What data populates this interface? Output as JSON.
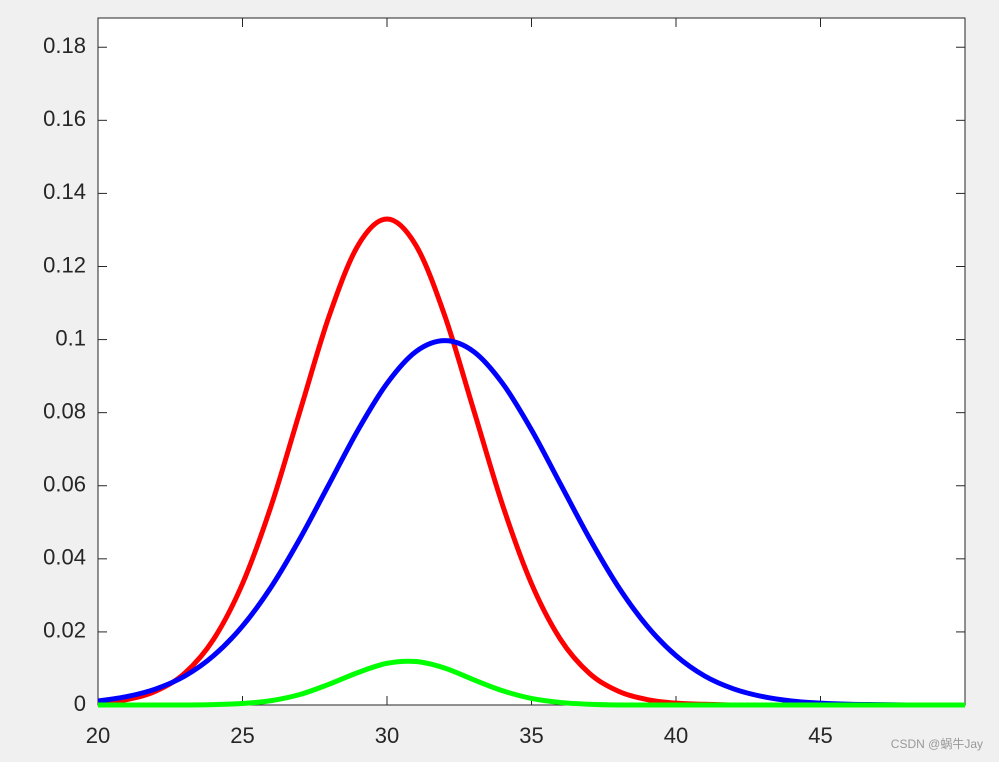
{
  "chart_data": {
    "type": "line",
    "x": [
      20,
      21,
      22,
      23,
      24,
      25,
      26,
      27,
      28,
      29,
      30,
      31,
      32,
      33,
      34,
      35,
      36,
      37,
      38,
      39,
      40,
      41,
      42,
      43,
      44,
      45,
      46,
      47,
      48,
      49,
      50
    ],
    "series": [
      {
        "color": "#ff0000",
        "values": [
          0.0005,
          0.0015,
          0.0038,
          0.0087,
          0.018,
          0.0332,
          0.0547,
          0.0807,
          0.1065,
          0.1258,
          0.133,
          0.1258,
          0.1065,
          0.0807,
          0.0547,
          0.0332,
          0.018,
          0.0087,
          0.0038,
          0.0015,
          0.0005,
          0.0002,
          0,
          0,
          0,
          0,
          0,
          0,
          0,
          0,
          0
        ]
      },
      {
        "color": "#0000ff",
        "values": [
          0.0011,
          0.0023,
          0.0044,
          0.0079,
          0.0135,
          0.0216,
          0.0324,
          0.0457,
          0.0605,
          0.0753,
          0.088,
          0.0967,
          0.0997,
          0.0967,
          0.088,
          0.0753,
          0.0605,
          0.0457,
          0.0324,
          0.0216,
          0.0135,
          0.0079,
          0.0044,
          0.0023,
          0.0011,
          0.0005,
          0.0002,
          0.0001,
          0,
          0,
          0
        ]
      },
      {
        "color": "#00ff00",
        "values": [
          0,
          0,
          0,
          0,
          0.0001,
          0.0004,
          0.0012,
          0.0029,
          0.0057,
          0.0089,
          0.0114,
          0.0119,
          0.0101,
          0.0069,
          0.0039,
          0.0018,
          0.0007,
          0.0002,
          0,
          0,
          0,
          0,
          0,
          0,
          0,
          0,
          0,
          0,
          0,
          0,
          0
        ]
      }
    ],
    "xlim": [
      20,
      50
    ],
    "xticks": [
      20,
      25,
      30,
      35,
      40,
      45
    ],
    "ylim": [
      0,
      0.188
    ],
    "yticks": [
      0,
      0.02,
      0.04,
      0.06,
      0.08,
      0.1,
      0.12,
      0.14,
      0.16,
      0.18
    ],
    "grid": false,
    "watermark": "CSDN @蜗牛Jay"
  }
}
